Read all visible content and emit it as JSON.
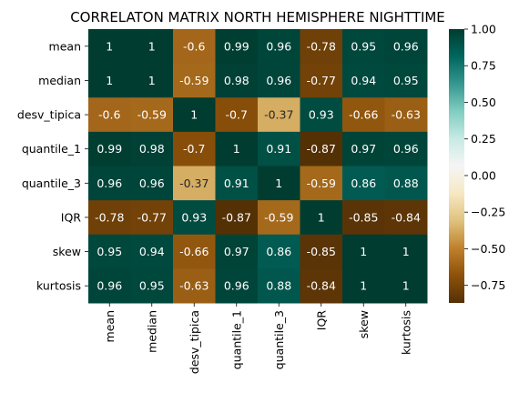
{
  "chart_data": {
    "type": "heatmap",
    "title": "CORRELATON MATRIX NORTH HEMISPHERE NIGHTTIME",
    "rows": [
      "mean",
      "median",
      "desv_tipica",
      "quantile_1",
      "quantile_3",
      "IQR",
      "skew",
      "kurtosis"
    ],
    "columns": [
      "mean",
      "median",
      "desv_tipica",
      "quantile_1",
      "quantile_3",
      "IQR",
      "skew",
      "kurtosis"
    ],
    "values": [
      [
        1,
        1,
        -0.6,
        0.99,
        0.96,
        -0.78,
        0.95,
        0.96
      ],
      [
        1,
        1,
        -0.59,
        0.98,
        0.96,
        -0.77,
        0.94,
        0.95
      ],
      [
        -0.6,
        -0.59,
        1,
        -0.7,
        -0.37,
        0.93,
        -0.66,
        -0.63
      ],
      [
        0.99,
        0.98,
        -0.7,
        1,
        0.91,
        -0.87,
        0.97,
        0.96
      ],
      [
        0.96,
        0.96,
        -0.37,
        0.91,
        1,
        -0.59,
        0.86,
        0.88
      ],
      [
        -0.78,
        -0.77,
        0.93,
        -0.87,
        -0.59,
        1,
        -0.85,
        -0.84
      ],
      [
        0.95,
        0.94,
        -0.66,
        0.97,
        0.86,
        -0.85,
        1,
        1
      ],
      [
        0.96,
        0.95,
        -0.63,
        0.96,
        0.88,
        -0.84,
        1,
        1
      ]
    ],
    "value_labels": [
      [
        "1",
        "1",
        "-0.6",
        "0.99",
        "0.96",
        "-0.78",
        "0.95",
        "0.96"
      ],
      [
        "1",
        "1",
        "-0.59",
        "0.98",
        "0.96",
        "-0.77",
        "0.94",
        "0.95"
      ],
      [
        "-0.6",
        "-0.59",
        "1",
        "-0.7",
        "-0.37",
        "0.93",
        "-0.66",
        "-0.63"
      ],
      [
        "0.99",
        "0.98",
        "-0.7",
        "1",
        "0.91",
        "-0.87",
        "0.97",
        "0.96"
      ],
      [
        "0.96",
        "0.96",
        "-0.37",
        "0.91",
        "1",
        "-0.59",
        "0.86",
        "0.88"
      ],
      [
        "-0.78",
        "-0.77",
        "0.93",
        "-0.87",
        "-0.59",
        "1",
        "-0.85",
        "-0.84"
      ],
      [
        "0.95",
        "0.94",
        "-0.66",
        "0.97",
        "0.86",
        "-0.85",
        "1",
        "1"
      ],
      [
        "0.96",
        "0.95",
        "-0.63",
        "0.96",
        "0.88",
        "-0.84",
        "1",
        "1"
      ]
    ],
    "colorbar": {
      "ticks": [
        1.0,
        0.75,
        0.5,
        0.25,
        0.0,
        -0.25,
        -0.5,
        -0.75
      ],
      "tick_labels": [
        "1.00",
        "0.75",
        "0.50",
        "0.25",
        "0.00",
        "−0.25",
        "−0.50",
        "−0.75"
      ]
    },
    "colormap": "BrBG",
    "vmin": -0.87,
    "vmax": 1.0
  }
}
